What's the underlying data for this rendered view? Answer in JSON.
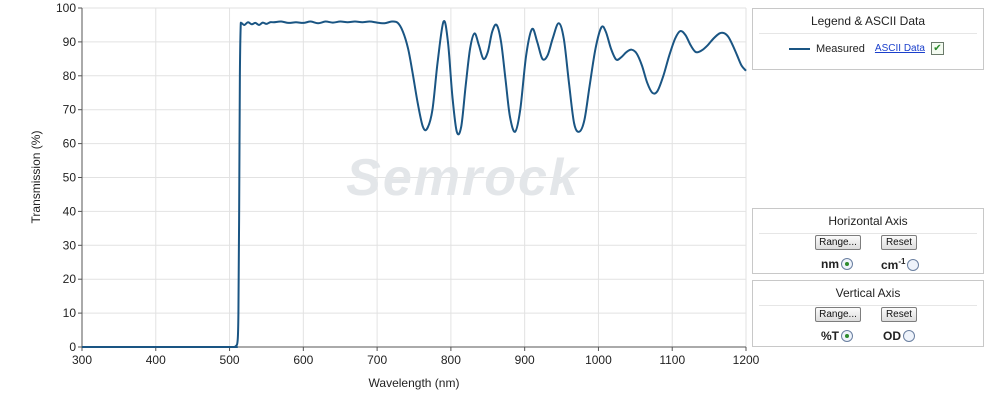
{
  "chart_data": {
    "type": "line",
    "xlabel": "Wavelength (nm)",
    "ylabel": "Transmission (%)",
    "xlim": [
      300,
      1200
    ],
    "ylim": [
      0,
      100
    ],
    "xticks": [
      300,
      400,
      500,
      600,
      700,
      800,
      900,
      1000,
      1100,
      1200
    ],
    "yticks": [
      0,
      10,
      20,
      30,
      40,
      50,
      60,
      70,
      80,
      90,
      100
    ],
    "grid": true,
    "watermark": "Semrock",
    "series": [
      {
        "name": "Measured",
        "color": "#1a5583",
        "points": [
          [
            300,
            0
          ],
          [
            400,
            0
          ],
          [
            500,
            0
          ],
          [
            508,
            0.2
          ],
          [
            511,
            2
          ],
          [
            512,
            10
          ],
          [
            513,
            40
          ],
          [
            514,
            80
          ],
          [
            515,
            94
          ],
          [
            516,
            95.5
          ],
          [
            520,
            95
          ],
          [
            525,
            95.8
          ],
          [
            530,
            95.2
          ],
          [
            535,
            95.6
          ],
          [
            540,
            95
          ],
          [
            545,
            95.7
          ],
          [
            550,
            95.3
          ],
          [
            555,
            95.8
          ],
          [
            560,
            95.8
          ],
          [
            570,
            96
          ],
          [
            580,
            95.6
          ],
          [
            590,
            95.8
          ],
          [
            600,
            95.6
          ],
          [
            610,
            96
          ],
          [
            620,
            95.5
          ],
          [
            630,
            96
          ],
          [
            640,
            95.7
          ],
          [
            650,
            96
          ],
          [
            660,
            95.8
          ],
          [
            670,
            96
          ],
          [
            680,
            95.8
          ],
          [
            690,
            96
          ],
          [
            700,
            95.7
          ],
          [
            710,
            95.5
          ],
          [
            720,
            96
          ],
          [
            728,
            95.6
          ],
          [
            735,
            93
          ],
          [
            742,
            88
          ],
          [
            748,
            81
          ],
          [
            755,
            72
          ],
          [
            762,
            65
          ],
          [
            768,
            64.5
          ],
          [
            775,
            70
          ],
          [
            782,
            84
          ],
          [
            790,
            96
          ],
          [
            796,
            90
          ],
          [
            802,
            74
          ],
          [
            808,
            63.5
          ],
          [
            814,
            65
          ],
          [
            820,
            77
          ],
          [
            826,
            88
          ],
          [
            832,
            92.5
          ],
          [
            838,
            89
          ],
          [
            844,
            85
          ],
          [
            850,
            87
          ],
          [
            856,
            93
          ],
          [
            862,
            95
          ],
          [
            868,
            90
          ],
          [
            874,
            79
          ],
          [
            880,
            68
          ],
          [
            887,
            63.5
          ],
          [
            894,
            70
          ],
          [
            902,
            86
          ],
          [
            910,
            93.8
          ],
          [
            917,
            90
          ],
          [
            924,
            85
          ],
          [
            931,
            86
          ],
          [
            938,
            91
          ],
          [
            946,
            95.5
          ],
          [
            953,
            91
          ],
          [
            960,
            78
          ],
          [
            967,
            66
          ],
          [
            974,
            63.5
          ],
          [
            981,
            67
          ],
          [
            988,
            77
          ],
          [
            996,
            88
          ],
          [
            1004,
            94.3
          ],
          [
            1010,
            93
          ],
          [
            1017,
            88
          ],
          [
            1024,
            84.8
          ],
          [
            1031,
            85.5
          ],
          [
            1038,
            87
          ],
          [
            1045,
            87.7
          ],
          [
            1052,
            86.5
          ],
          [
            1059,
            83
          ],
          [
            1066,
            78
          ],
          [
            1073,
            75
          ],
          [
            1080,
            75.5
          ],
          [
            1088,
            80
          ],
          [
            1096,
            86
          ],
          [
            1104,
            91
          ],
          [
            1111,
            93.2
          ],
          [
            1118,
            92
          ],
          [
            1125,
            89
          ],
          [
            1132,
            87
          ],
          [
            1140,
            87.5
          ],
          [
            1148,
            89
          ],
          [
            1156,
            91
          ],
          [
            1164,
            92.5
          ],
          [
            1170,
            92.6
          ],
          [
            1176,
            91.5
          ],
          [
            1182,
            89
          ],
          [
            1188,
            86
          ],
          [
            1194,
            83
          ],
          [
            1200,
            81.5
          ]
        ]
      }
    ]
  },
  "legend_panel": {
    "title": "Legend & ASCII Data",
    "series_label": "Measured",
    "link_label": "ASCII Data",
    "checked": true
  },
  "horizontal_axis_panel": {
    "title": "Horizontal Axis",
    "range_button": "Range...",
    "reset_button": "Reset",
    "option1": "nm",
    "option2": "cm",
    "option2_sup": "-1",
    "selected": "nm"
  },
  "vertical_axis_panel": {
    "title": "Vertical  Axis",
    "range_button": "Range...",
    "reset_button": "Reset",
    "option1": "%T",
    "option2": "OD",
    "selected": "%T"
  }
}
